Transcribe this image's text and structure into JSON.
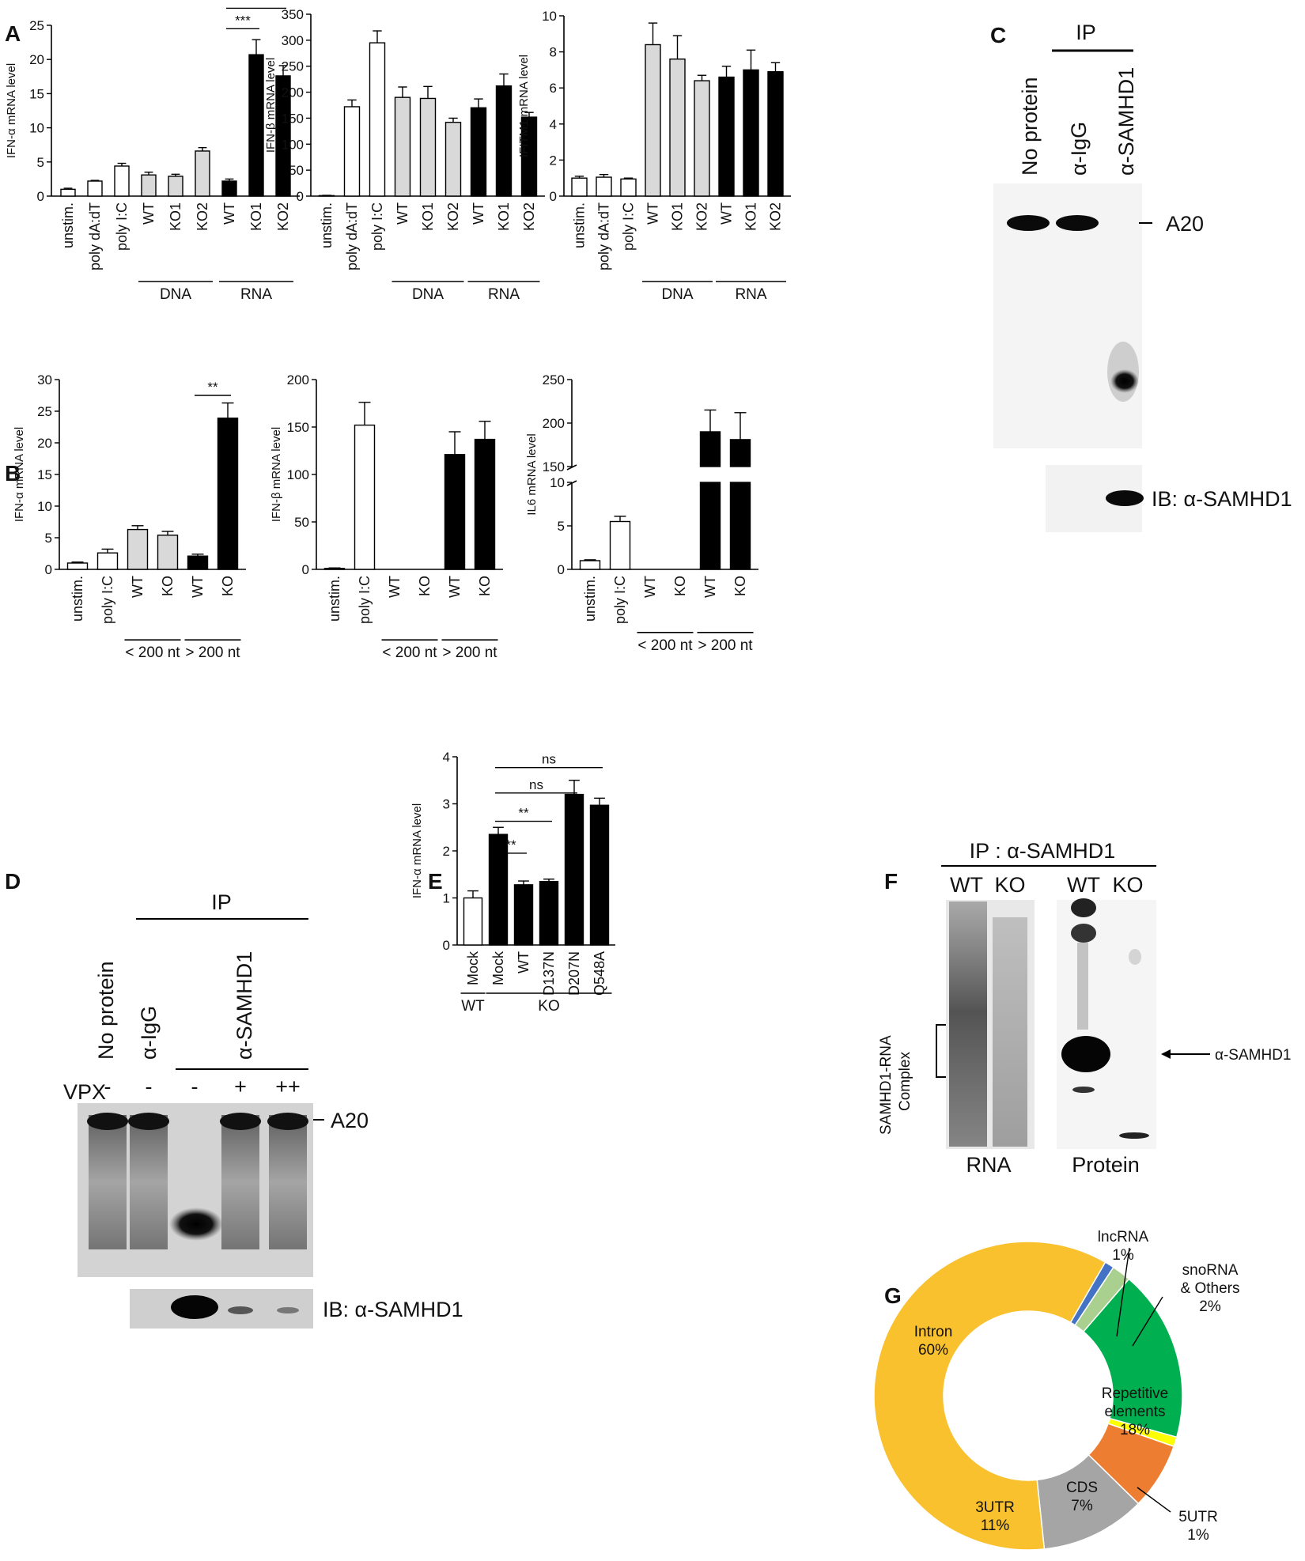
{
  "panel_labels": {
    "A": "A",
    "B": "B",
    "C": "C",
    "D": "D",
    "E": "E",
    "F": "F",
    "G": "G"
  },
  "colors": {
    "white": "#ffffff",
    "gray": "#d9d9d9",
    "black": "#000000"
  },
  "chart_data": [
    {
      "id": "A1",
      "type": "bar",
      "ylabel": "IFN-α mRNA level",
      "ylim": [
        0,
        25
      ],
      "yticks": [
        "0",
        "5",
        "10",
        "15",
        "20",
        "25"
      ],
      "categories": [
        "unstim.",
        "poly dA:dT",
        "poly I:C",
        "WT",
        "KO1",
        "KO2",
        "WT",
        "KO1",
        "KO2"
      ],
      "values": [
        1.0,
        2.2,
        4.4,
        3.1,
        2.9,
        6.6,
        2.2,
        20.7,
        17.6
      ],
      "errors": [
        0.15,
        0.1,
        0.4,
        0.4,
        0.3,
        0.5,
        0.3,
        2.2,
        1.5
      ],
      "fills": [
        "white",
        "white",
        "white",
        "gray",
        "gray",
        "gray",
        "black",
        "black",
        "black"
      ],
      "groups": [
        {
          "label": "DNA",
          "from": 3,
          "to": 5
        },
        {
          "label": "RNA",
          "from": 6,
          "to": 8
        }
      ],
      "significance": [
        {
          "from": 6,
          "to": 7,
          "label": "***",
          "y": 24.5
        },
        {
          "from": 6,
          "to": 8,
          "label": "***",
          "y": 27.5
        }
      ]
    },
    {
      "id": "A2",
      "type": "bar",
      "ylabel": "IFN-β mRNA level",
      "ylim": [
        0,
        350
      ],
      "yticks": [
        "0",
        "50",
        "100",
        "150",
        "200",
        "250",
        "300",
        "350"
      ],
      "categories": [
        "unstim.",
        "poly dA:dT",
        "poly I:C",
        "WT",
        "KO1",
        "KO2",
        "WT",
        "KO1",
        "KO2"
      ],
      "values": [
        1,
        172,
        295,
        190,
        188,
        142,
        170,
        212,
        152
      ],
      "errors": [
        0.5,
        13,
        23,
        20,
        23,
        8,
        17,
        23,
        9
      ],
      "fills": [
        "white",
        "white",
        "white",
        "gray",
        "gray",
        "gray",
        "black",
        "black",
        "black"
      ],
      "groups": [
        {
          "label": "DNA",
          "from": 3,
          "to": 5
        },
        {
          "label": "RNA",
          "from": 6,
          "to": 8
        }
      ],
      "significance": []
    },
    {
      "id": "A3",
      "type": "bar",
      "ylabel": "IFITM1 mRNA level",
      "ylim": [
        0,
        10
      ],
      "yticks": [
        "0",
        "2",
        "4",
        "6",
        "8",
        "10"
      ],
      "categories": [
        "unstim.",
        "poly dA:dT",
        "poly I:C",
        "WT",
        "KO1",
        "KO2",
        "WT",
        "KO1",
        "KO2"
      ],
      "values": [
        1.0,
        1.05,
        0.95,
        8.4,
        7.6,
        6.4,
        6.6,
        7.0,
        6.9
      ],
      "errors": [
        0.1,
        0.15,
        0.05,
        1.2,
        1.3,
        0.3,
        0.6,
        1.1,
        0.5
      ],
      "fills": [
        "white",
        "white",
        "white",
        "gray",
        "gray",
        "gray",
        "black",
        "black",
        "black"
      ],
      "groups": [
        {
          "label": "DNA",
          "from": 3,
          "to": 5
        },
        {
          "label": "RNA",
          "from": 6,
          "to": 8
        }
      ],
      "significance": []
    },
    {
      "id": "B1",
      "type": "bar",
      "ylabel": "IFN-α mRNA level",
      "ylim": [
        0,
        30
      ],
      "yticks": [
        "0",
        "5",
        "10",
        "15",
        "20",
        "25",
        "30"
      ],
      "categories": [
        "unstim.",
        "poly I:C",
        "WT",
        "KO",
        "WT",
        "KO"
      ],
      "values": [
        1.0,
        2.6,
        6.3,
        5.4,
        2.1,
        23.9
      ],
      "errors": [
        0.15,
        0.6,
        0.6,
        0.6,
        0.3,
        2.4
      ],
      "fills": [
        "white",
        "white",
        "gray",
        "gray",
        "black",
        "black"
      ],
      "groups": [
        {
          "label": "< 200 nt",
          "from": 2,
          "to": 3
        },
        {
          "label": "> 200 nt",
          "from": 4,
          "to": 5
        }
      ],
      "significance": [
        {
          "from": 4,
          "to": 5,
          "label": "**",
          "y": 27.5
        }
      ]
    },
    {
      "id": "B2",
      "type": "bar",
      "ylabel": "IFN-β mRNA level",
      "ylim": [
        0,
        200
      ],
      "yticks": [
        "0",
        "50",
        "100",
        "150",
        "200"
      ],
      "categories": [
        "unstim.",
        "poly I:C",
        "WT",
        "KO",
        "WT",
        "KO"
      ],
      "values": [
        1,
        152,
        0,
        0,
        121,
        137
      ],
      "errors": [
        0.5,
        24,
        0,
        0,
        24,
        19
      ],
      "fills": [
        "white",
        "white",
        "gray",
        "gray",
        "black",
        "black"
      ],
      "groups": [
        {
          "label": "< 200 nt",
          "from": 2,
          "to": 3
        },
        {
          "label": "> 200 nt",
          "from": 4,
          "to": 5
        }
      ],
      "significance": []
    },
    {
      "id": "B3",
      "type": "bar",
      "ylabel": "IL6 mRNA level",
      "ylim": [
        0,
        250
      ],
      "axis_break": true,
      "yticks_lower": [
        "0",
        "5",
        "10"
      ],
      "yticks_upper": [
        "150",
        "200",
        "250"
      ],
      "categories": [
        "unstim.",
        "poly I:C",
        "WT",
        "KO",
        "WT",
        "KO"
      ],
      "values": [
        1.0,
        5.5,
        0,
        0,
        190,
        181
      ],
      "errors": [
        0.1,
        0.6,
        0,
        0,
        25,
        31
      ],
      "fills": [
        "white",
        "white",
        "gray",
        "gray",
        "black",
        "black"
      ],
      "groups": [
        {
          "label": "< 200 nt",
          "from": 2,
          "to": 3
        },
        {
          "label": "> 200 nt",
          "from": 4,
          "to": 5
        }
      ],
      "significance": []
    },
    {
      "id": "E",
      "type": "bar",
      "ylabel": "IFN-α mRNA level",
      "ylim": [
        0,
        4
      ],
      "yticks": [
        "0",
        "1",
        "2",
        "3",
        "4"
      ],
      "categories": [
        "Mock",
        "Mock",
        "WT",
        "D137N",
        "D207N",
        "Q548A"
      ],
      "values": [
        1.0,
        2.35,
        1.28,
        1.35,
        3.2,
        2.97
      ],
      "errors": [
        0.15,
        0.15,
        0.08,
        0.05,
        0.3,
        0.15
      ],
      "fills": [
        "white",
        "black",
        "black",
        "black",
        "black",
        "black"
      ],
      "groups": [
        {
          "label": "WT",
          "from": 0,
          "to": 0
        },
        {
          "label": "KO",
          "from": 1,
          "to": 5
        }
      ],
      "significance": [
        {
          "from": 1,
          "to": 2,
          "label": "**",
          "y": 1.95
        },
        {
          "from": 1,
          "to": 3,
          "label": "**",
          "y": 2.63
        },
        {
          "from": 1,
          "to": 4,
          "label": "ns",
          "y": 3.23
        },
        {
          "from": 1,
          "to": 5,
          "label": "ns",
          "y": 3.77
        }
      ]
    },
    {
      "id": "G",
      "type": "pie",
      "labels": [
        "lncRNA",
        "snoRNA & Others",
        "Repetitive elements",
        "5UTR",
        "CDS",
        "3UTR",
        "Intron"
      ],
      "label_lines": [
        [
          "lncRNA",
          "1%"
        ],
        [
          "snoRNA",
          "& Others",
          "2%"
        ],
        [
          "Repetitive",
          "elements",
          "18%"
        ],
        [
          "5UTR",
          "1%"
        ],
        [
          "CDS",
          "7%"
        ],
        [
          "3UTR",
          "11%"
        ],
        [
          "Intron",
          "60%"
        ]
      ],
      "values": [
        1,
        2,
        18,
        1,
        7,
        11,
        60
      ],
      "colors": [
        "#4472c4",
        "#a9d08e",
        "#00b050",
        "#ffff00",
        "#ed7d31",
        "#a5a5a5",
        "#f9c12e"
      ]
    }
  ],
  "blots": {
    "C": {
      "header": "IP",
      "lanes": [
        "No protein",
        "α-IgG",
        "α-SAMHD1"
      ],
      "band": "A20",
      "ib": "IB: α-SAMHD1"
    },
    "D": {
      "header": "IP",
      "lanes": [
        "No protein",
        "α-IgG",
        "α-SAMHD1"
      ],
      "vpx_label": "VPX",
      "vpx": [
        "-",
        "-",
        "-",
        "+",
        "++"
      ],
      "band": "A20",
      "ib": "IB: α-SAMHD1"
    },
    "F": {
      "header": "IP : α-SAMHD1",
      "lanes": [
        "WT",
        "KO",
        "WT",
        "KO"
      ],
      "ylabel_1": "SAMHD1-RNA",
      "ylabel_2": "Complex",
      "bottom": [
        "RNA",
        "Protein"
      ],
      "arrow": "α-SAMHD1"
    }
  }
}
